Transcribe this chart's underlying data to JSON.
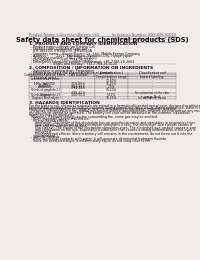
{
  "bg_color": "#f0ede8",
  "header_left": "Product Name: Lithium Ion Battery Cell",
  "header_right": "Substance Number: SDS-049-00010\nEstablished / Revision: Dec.7.2010",
  "title": "Safety data sheet for chemical products (SDS)",
  "s1_title": "1. PRODUCT AND COMPANY IDENTIFICATION",
  "s1_lines": [
    "  - Product name: Lithium Ion Battery Cell",
    "  - Product code: Cylindrical-type cell",
    "    IFR 18650U, IFR18650U, IFR18650A",
    "  - Company name:   Bango Electric Co., Ltd., Mobile Energy Company",
    "  - Address:         2201, Kaminokuni, Suminoki-City, Hyogo, Japan",
    "  - Telephone number:  +81-7786-20-4111",
    "  - Fax number:        +81-7788-26-4120",
    "  - Emergency telephone number (dahanong): +81-7786-20-2662",
    "                        (Night and holiday): +81-7788-26-4120"
  ],
  "s2_title": "2. COMPOSITION / INFORMATION ON INGREDIENTS",
  "s2_lines": [
    "  - Substance or preparation: Preparation",
    "  - Information about the chemical nature of product:"
  ],
  "table_headers": [
    "Component/chemical name",
    "CAS number",
    "Concentration /\nConcentration range",
    "Classification and\nhazard labeling"
  ],
  "table_rows": [
    [
      "Chemical name",
      "-",
      "-",
      "-"
    ],
    [
      "Lithium cobalt oxide\n(LiMn-Co(III)O4)",
      "-",
      "30-60%",
      "-"
    ],
    [
      "Iron",
      "7439-89-6",
      "15-25%",
      "-"
    ],
    [
      "Aluminum",
      "7429-90-5",
      "2-5%",
      "-"
    ],
    [
      "Graphite\n(kinds of graphite-1)\n(kinds of graphite-2)",
      "7782-42-5\n7782-42-5",
      "10-20%",
      "-"
    ],
    [
      "Copper",
      "7440-50-8",
      "5-15%",
      "Sensitization of the skin\ngroup: No.2"
    ],
    [
      "Organic electrolyte",
      "-",
      "10-20%",
      "Inflammatory liquid"
    ]
  ],
  "row_heights": [
    3.0,
    5.0,
    3.0,
    3.0,
    6.5,
    5.0,
    3.0
  ],
  "s3_title": "3. HAZARDS IDENTIFICATION",
  "s3_para": [
    "For the battery cell, chemical materials are stored in a hermetically sealed metal case, designed to withstand",
    "temperature changes and electrolyte-corrosion during normal use. As a result, during normal use, there is no",
    "physical danger of ignition or explosion and thermal-danger of hazardous materials leakage.",
    "  However, if exposed to a fire, added mechanical shocks, decomposition, ambient electric without any measures,",
    "the gas inside cannot be operated. The battery cell case will be breached at fire-extreme, hazardous",
    "materials may be released.",
    "  Moreover, if heated strongly by the surrounding fire, some gas may be emitted."
  ],
  "s3_bullets": [
    "  - Most important hazard and effects:",
    "    Human health effects:",
    "      Inhalation: The steam of the electrolyte has an anesthesia action and stimulates in respiratory tract.",
    "      Skin contact: The steam of the electrolyte stimulates a skin. The electrolyte skin contact causes a",
    "      sore and stimulation on the skin.",
    "      Eye contact: The steam of the electrolyte stimulates eyes. The electrolyte eye contact causes a sore",
    "      and stimulation on the eye. Especially, a substance that causes a strong inflammation of the eyes is",
    "      contained.",
    "      Environmental effects: Since a battery cell remains in the environment, do not throw out it into the",
    "      environment.",
    "  - Specific hazards:",
    "    If the electrolyte contacts with water, it will generate detrimental hydrogen fluoride.",
    "    Since the used-electrolyte is inflammatory liquid, do not cong close to fire."
  ],
  "header_fs": 2.5,
  "title_fs": 4.8,
  "section_title_fs": 3.2,
  "body_fs": 2.3,
  "table_header_fs": 2.2,
  "table_body_fs": 2.1
}
